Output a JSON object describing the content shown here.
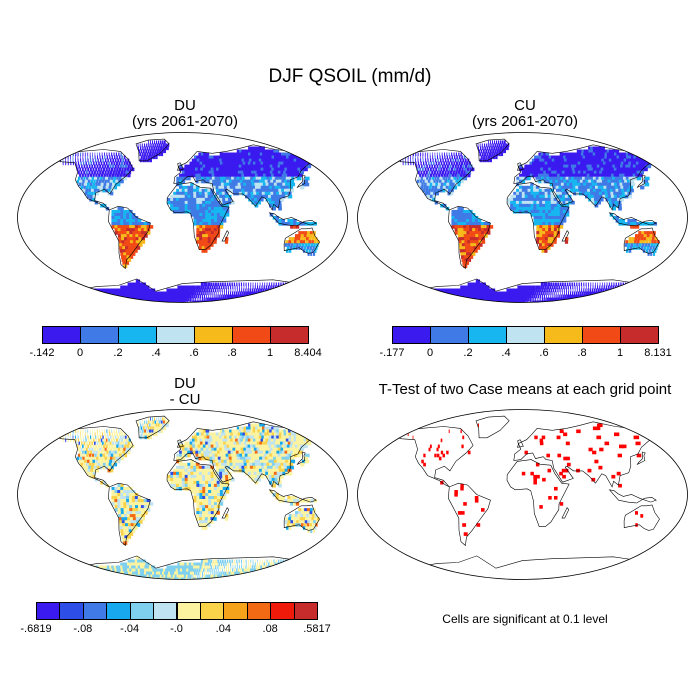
{
  "title": "DJF QSOIL (mm/d)",
  "chart_data": [
    {
      "type": "heatmap",
      "title": "DU",
      "subtitle": "(yrs 2061-2070)",
      "legend": {
        "labels": [
          "-.142",
          "0",
          ".2",
          ".4",
          ".6",
          ".8",
          "1",
          "8.404"
        ],
        "colors": [
          "#3b1af0",
          "#3f7ae6",
          "#17b6f0",
          "#bfe3f0",
          "#f7ba1b",
          "#f14a17",
          "#c72c2c"
        ]
      },
      "range": [
        -0.142,
        8.404
      ]
    },
    {
      "type": "heatmap",
      "title": "CU",
      "subtitle": "(yrs 2061-2070)",
      "legend": {
        "labels": [
          "-.177",
          "0",
          ".2",
          ".4",
          ".6",
          ".8",
          "1",
          "8.131"
        ],
        "colors": [
          "#3b1af0",
          "#3f7ae6",
          "#17b6f0",
          "#bfe3f0",
          "#f7ba1b",
          "#f14a17",
          "#c72c2c"
        ]
      },
      "range": [
        -0.177,
        8.131
      ]
    },
    {
      "type": "heatmap",
      "title": "DU",
      "subtitle": "- CU",
      "legend": {
        "labels": [
          "-.6819",
          "-.08",
          "-.04",
          "-.0",
          ".04",
          ".08",
          ".5817"
        ],
        "colors": [
          "#3b1af0",
          "#2e4ee8",
          "#3f7ae6",
          "#17a8ee",
          "#7fd0ee",
          "#bfe3f0",
          "#fcf3a0",
          "#fbd34a",
          "#f5a31b",
          "#f36a14",
          "#f01a0a",
          "#c72c2c"
        ]
      },
      "range": [
        -0.6819,
        0.5817
      ]
    },
    {
      "type": "heatmap",
      "title": "T-Test of two Case means at each grid point",
      "note": "Cells are significant at 0.1 level",
      "significant_color": "#ff0000"
    }
  ]
}
